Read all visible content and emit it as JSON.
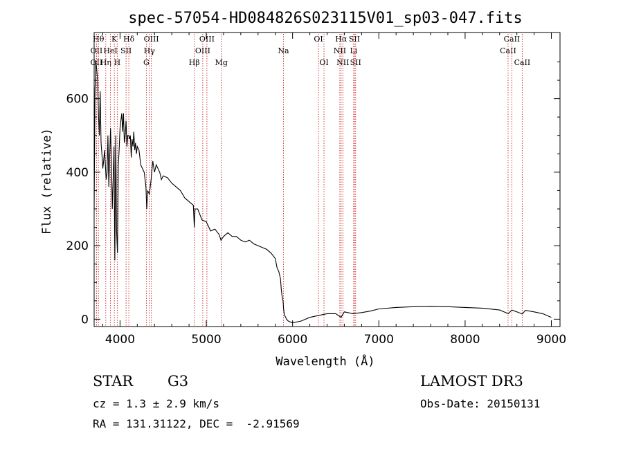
{
  "chart_data": {
    "type": "line",
    "title": "spec-57054-HD084826S023115V01_sp03-047.fits",
    "xlabel": "Wavelength (Å)",
    "ylabel": "Flux (relative)",
    "xlim": [
      3700,
      9100
    ],
    "ylim": [
      -20,
      780
    ],
    "x_ticks": [
      4000,
      5000,
      6000,
      7000,
      8000,
      9000
    ],
    "y_ticks": [
      0,
      200,
      400,
      600
    ],
    "grid": false,
    "series": [
      {
        "x": [
          3700,
          3710,
          3720,
          3730,
          3740,
          3750,
          3760,
          3770,
          3780,
          3790,
          3800,
          3810,
          3820,
          3830,
          3840,
          3850,
          3860,
          3870,
          3880,
          3890,
          3900,
          3910,
          3920,
          3930,
          3940,
          3950,
          3960,
          3970,
          3980,
          3990,
          4000,
          4010,
          4020,
          4030,
          4040,
          4050,
          4060,
          4070,
          4080,
          4090,
          4100,
          4110,
          4120,
          4130,
          4140,
          4150,
          4160,
          4170,
          4180,
          4190,
          4200,
          4220,
          4240,
          4260,
          4280,
          4300,
          4310,
          4320,
          4340,
          4360,
          4380,
          4400,
          4420,
          4440,
          4460,
          4480,
          4500,
          4550,
          4600,
          4650,
          4700,
          4750,
          4800,
          4850,
          4861,
          4870,
          4900,
          4950,
          5000,
          5050,
          5100,
          5150,
          5170,
          5200,
          5250,
          5300,
          5350,
          5400,
          5450,
          5500,
          5550,
          5600,
          5650,
          5700,
          5750,
          5800,
          5820,
          5840,
          5860,
          5870,
          5880,
          5890,
          5895,
          5900,
          5910,
          5920,
          5930,
          5950,
          6000,
          6100,
          6200,
          6300,
          6400,
          6500,
          6563,
          6600,
          6700,
          6800,
          6900,
          7000,
          7200,
          7400,
          7600,
          7800,
          8000,
          8200,
          8400,
          8500,
          8542,
          8600,
          8662,
          8700,
          8800,
          8900,
          9000
        ],
        "values": [
          300,
          620,
          700,
          680,
          650,
          560,
          500,
          620,
          480,
          450,
          410,
          430,
          460,
          420,
          380,
          400,
          500,
          360,
          440,
          520,
          430,
          300,
          380,
          470,
          160,
          500,
          240,
          180,
          420,
          460,
          520,
          540,
          560,
          510,
          560,
          480,
          500,
          540,
          470,
          500,
          500,
          490,
          500,
          440,
          490,
          470,
          510,
          460,
          480,
          450,
          470,
          460,
          420,
          410,
          400,
          360,
          300,
          350,
          340,
          380,
          430,
          400,
          420,
          410,
          400,
          380,
          390,
          385,
          370,
          360,
          350,
          330,
          320,
          310,
          250,
          300,
          300,
          270,
          265,
          240,
          245,
          230,
          215,
          225,
          235,
          225,
          225,
          215,
          210,
          215,
          205,
          200,
          195,
          190,
          180,
          165,
          140,
          130,
          110,
          80,
          60,
          50,
          30,
          20,
          10,
          5,
          0,
          -5,
          -10,
          -5,
          5,
          10,
          15,
          15,
          5,
          20,
          15,
          18,
          22,
          28,
          32,
          34,
          35,
          34,
          32,
          30,
          25,
          15,
          25,
          20,
          14,
          24,
          20,
          15,
          5
        ]
      }
    ],
    "spectral_lines": [
      {
        "name": "OII",
        "x": 3727,
        "row": 2
      },
      {
        "name": "OII",
        "x": 3727,
        "row": 3
      },
      {
        "name": "Hθ",
        "x": 3750,
        "row": 1
      },
      {
        "name": "Hη",
        "x": 3835,
        "row": 3
      },
      {
        "name": "HeI",
        "x": 3889,
        "row": 2
      },
      {
        "name": "K",
        "x": 3934,
        "row": 1
      },
      {
        "name": "H",
        "x": 3968,
        "row": 3
      },
      {
        "name": "SII",
        "x": 4070,
        "row": 2
      },
      {
        "name": "Hδ",
        "x": 4102,
        "row": 1
      },
      {
        "name": "Hγ",
        "x": 4340,
        "row": 2
      },
      {
        "name": "G",
        "x": 4305,
        "row": 3
      },
      {
        "name": "OIII",
        "x": 4363,
        "row": 1
      },
      {
        "name": "Hβ",
        "x": 4861,
        "row": 3
      },
      {
        "name": "OIII",
        "x": 4959,
        "row": 2
      },
      {
        "name": "OIII",
        "x": 5007,
        "row": 1
      },
      {
        "name": "Mg",
        "x": 5175,
        "row": 3
      },
      {
        "name": "Na",
        "x": 5894,
        "row": 2
      },
      {
        "name": "OI",
        "x": 6300,
        "row": 1
      },
      {
        "name": "OI",
        "x": 6364,
        "row": 3
      },
      {
        "name": "NII",
        "x": 6548,
        "row": 2
      },
      {
        "name": "Hα",
        "x": 6563,
        "row": 1
      },
      {
        "name": "NII",
        "x": 6583,
        "row": 3
      },
      {
        "name": "SII",
        "x": 6717,
        "row": 1
      },
      {
        "name": "Li",
        "x": 6708,
        "row": 2
      },
      {
        "name": "SII",
        "x": 6731,
        "row": 3
      },
      {
        "name": "CaII",
        "x": 8498,
        "row": 2
      },
      {
        "name": "CaII",
        "x": 8542,
        "row": 1
      },
      {
        "name": "CaII",
        "x": 8662,
        "row": 3
      }
    ],
    "colors": {
      "spectrum": "#000000",
      "lines": "#cc2222",
      "axes": "#000000"
    }
  },
  "footer": {
    "object_class": "STAR",
    "subclass": "G3",
    "survey": "LAMOST DR3",
    "cz": "cz = 1.3 ± 2.9 km/s",
    "obs_date": "Obs-Date: 20150131",
    "coords": "RA = 131.31122, DEC =  -2.91569"
  }
}
